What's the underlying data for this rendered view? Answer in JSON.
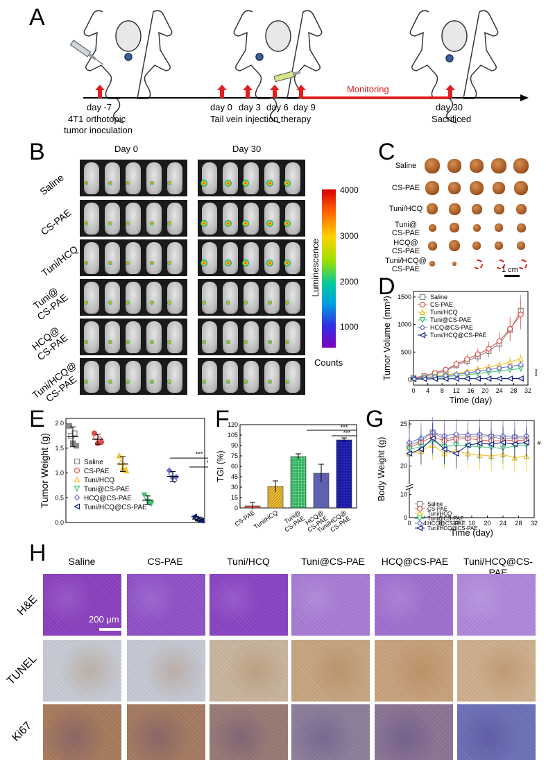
{
  "panelA": {
    "letter": "A",
    "days": [
      "day -7",
      "day 0",
      "day 3",
      "day 6",
      "day 9",
      "day 30"
    ],
    "monitoring": "Monitoring",
    "inoculation_line1": "4T1 orthotopic",
    "inoculation_line2": "tumor inoculation",
    "injection": "Tail vein injection therapy",
    "sacrificed": "Sacrificed"
  },
  "panelB": {
    "letter": "B",
    "col_day0": "Day 0",
    "col_day30": "Day 30",
    "rows": [
      {
        "line1": "Saline",
        "line2": ""
      },
      {
        "line1": "CS-PAE",
        "line2": ""
      },
      {
        "line1": "Tuni/HCQ",
        "line2": ""
      },
      {
        "line1": "Tuni@",
        "line2": "CS-PAE"
      },
      {
        "line1": "HCQ@",
        "line2": "CS-PAE"
      },
      {
        "line1": "Tuni/HCQ@",
        "line2": "CS-PAE"
      }
    ],
    "colorbar": {
      "ticks": [
        "4000",
        "3000",
        "2000",
        "1000"
      ],
      "label": "Luminescence",
      "bottom_label": "Counts"
    }
  },
  "panelC": {
    "letter": "C",
    "rows": [
      {
        "line1": "Saline",
        "line2": ""
      },
      {
        "line1": "CS-PAE",
        "line2": ""
      },
      {
        "line1": "Tuni/HCQ",
        "line2": ""
      },
      {
        "line1": "Tuni@",
        "line2": "CS-PAE"
      },
      {
        "line1": "HCQ@",
        "line2": "CS-PAE"
      },
      {
        "line1": "Tuni/HCQ@",
        "line2": "CS-PAE"
      }
    ],
    "scale": "1 cm"
  },
  "panelD": {
    "letter": "D"
  },
  "panelE": {
    "letter": "E"
  },
  "panelF": {
    "letter": "F"
  },
  "panelG": {
    "letter": "G"
  },
  "panelH": {
    "letter": "H",
    "columns": [
      "Saline",
      "CS-PAE",
      "Tuni/HCQ",
      "Tuni@CS-PAE",
      "HCQ@CS-PAE",
      "Tuni/HCQ@CS-PAE"
    ],
    "rows": [
      "H&E",
      "TUNEL",
      "Ki67"
    ],
    "scale": "200 μm"
  },
  "colors": {
    "saline": "#888888",
    "cspae": "#e0504a",
    "tunihcq": "#f0c020",
    "tunicspae": "#40c070",
    "hcqcspae": "#7070d0",
    "tunihcqcspae": "#0a1a80",
    "red": "#e02020"
  },
  "chart_data": [
    {
      "id": "D",
      "type": "line",
      "title": "",
      "xlabel": "Time (day)",
      "ylabel": "Tumor Volume (mm³)",
      "xlim": [
        0,
        32
      ],
      "ylim": [
        -100,
        1600
      ],
      "xticks": [
        "0",
        "4",
        "8",
        "12",
        "16",
        "20",
        "24",
        "28",
        "32"
      ],
      "yticks": [
        "0",
        "500",
        "1000",
        "1500"
      ],
      "annotation": "***",
      "x": [
        0,
        3,
        6,
        9,
        12,
        15,
        18,
        21,
        24,
        27,
        30
      ],
      "series": [
        {
          "name": "Saline",
          "values": [
            30,
            60,
            100,
            160,
            260,
            340,
            420,
            520,
            650,
            900,
            1250
          ]
        },
        {
          "name": "CS-PAE",
          "values": [
            30,
            70,
            120,
            180,
            280,
            370,
            460,
            560,
            700,
            920,
            1180
          ]
        },
        {
          "name": "Tuni/HCQ",
          "values": [
            20,
            40,
            60,
            80,
            110,
            150,
            190,
            230,
            270,
            320,
            380
          ]
        },
        {
          "name": "Tuni@CS-PAE",
          "values": [
            20,
            30,
            40,
            55,
            70,
            90,
            110,
            130,
            160,
            180,
            200
          ]
        },
        {
          "name": "HCQ@CS-PAE",
          "values": [
            20,
            35,
            50,
            70,
            95,
            120,
            150,
            180,
            210,
            240,
            270
          ]
        },
        {
          "name": "Tuni/HCQ@CS-PAE",
          "values": [
            10,
            12,
            14,
            15,
            16,
            17,
            18,
            18,
            19,
            19,
            20
          ]
        }
      ]
    },
    {
      "id": "E",
      "type": "scatter",
      "title": "",
      "xlabel": "",
      "ylabel": "Tumor Weight (g)",
      "ylim": [
        0,
        2.1
      ],
      "yticks": [
        "0.0",
        "0.5",
        "1.0",
        "1.5",
        "2.0"
      ],
      "annotation": "***",
      "series": [
        {
          "name": "Saline",
          "mean": 1.73,
          "points": [
            1.95,
            1.75,
            1.6,
            1.8,
            1.55
          ]
        },
        {
          "name": "CS-PAE",
          "mean": 1.68,
          "points": [
            1.8,
            1.72,
            1.6,
            1.68,
            1.62
          ]
        },
        {
          "name": "Tuni/HCQ",
          "mean": 1.18,
          "points": [
            1.35,
            1.22,
            1.1,
            1.15,
            1.05
          ]
        },
        {
          "name": "Tuni@CS-PAE",
          "mean": 0.45,
          "points": [
            0.55,
            0.5,
            0.42,
            0.4,
            0.38
          ]
        },
        {
          "name": "HCQ@CS-PAE",
          "mean": 0.93,
          "points": [
            1.05,
            0.98,
            0.9,
            0.85,
            0.92
          ]
        },
        {
          "name": "Tuni/HCQ@CS-PAE",
          "mean": 0.07,
          "points": [
            0.12,
            0.08,
            0.05,
            0.06,
            0.04
          ]
        }
      ]
    },
    {
      "id": "F",
      "type": "bar",
      "title": "",
      "xlabel": "",
      "ylabel": "TGI (%)",
      "ylim": [
        0,
        120
      ],
      "yticks": [
        "0",
        "15",
        "30",
        "45",
        "60",
        "75",
        "90",
        "105",
        "120"
      ],
      "annotation": "***",
      "categories": [
        "CS-PAE",
        "Tuni/HCQ",
        "Tuni@CS-PAE",
        "HCQ@CS-PAE",
        "Tuni/HCQ@CS-PAE"
      ],
      "category_lines": [
        [
          "CS-PAE"
        ],
        [
          "Tuni/HCQ"
        ],
        [
          "Tuni@",
          "CS-PAE"
        ],
        [
          "HCQ@",
          "CS-PAE"
        ],
        [
          "Tuni/HCQ@",
          "CS-PAE"
        ]
      ],
      "values": [
        3,
        31,
        74,
        50,
        98
      ],
      "errors": [
        5,
        8,
        4,
        13,
        3
      ]
    },
    {
      "id": "G",
      "type": "line",
      "title": "",
      "xlabel": "Time (day)",
      "ylabel": "Body Weight (g)",
      "xlim": [
        0,
        32
      ],
      "ylim": [
        0,
        25
      ],
      "yticks": [
        "0",
        "10",
        "20",
        "25"
      ],
      "xticks": [
        "0",
        "4",
        "8",
        "12",
        "16",
        "20",
        "24",
        "28",
        "32"
      ],
      "annotation": "#",
      "x": [
        0,
        3,
        6,
        9,
        12,
        15,
        18,
        21,
        24,
        27,
        30
      ],
      "series": [
        {
          "name": "Saline",
          "values": [
            22.5,
            23,
            24,
            23.2,
            23.5,
            23.4,
            23.6,
            23.5,
            23.2,
            23.4,
            23.3
          ]
        },
        {
          "name": "CS-PAE",
          "values": [
            22.2,
            22.8,
            23.5,
            23,
            23.2,
            23.3,
            23.1,
            23,
            23,
            23.1,
            23
          ]
        },
        {
          "name": "Tuni/HCQ",
          "values": [
            21.5,
            21.8,
            22.5,
            21.5,
            21.8,
            21.5,
            21.3,
            21.2,
            21.4,
            21.0,
            21.2
          ]
        },
        {
          "name": "Tuni@CS-PAE",
          "values": [
            22,
            22.3,
            23,
            22.3,
            22.5,
            22.4,
            22.3,
            22.2,
            22.1,
            22.4,
            22.5
          ]
        },
        {
          "name": "HCQ@CS-PAE",
          "values": [
            22.8,
            23.3,
            24,
            23.6,
            23.8,
            23.7,
            23.8,
            23.6,
            23.6,
            23.5,
            23.6
          ]
        },
        {
          "name": "Tuni/HCQ@CS-PAE",
          "values": [
            21.5,
            22,
            23.3,
            22,
            21.5,
            22.5,
            22.7,
            22.6,
            22.8,
            22.6,
            22.8
          ]
        }
      ]
    }
  ]
}
